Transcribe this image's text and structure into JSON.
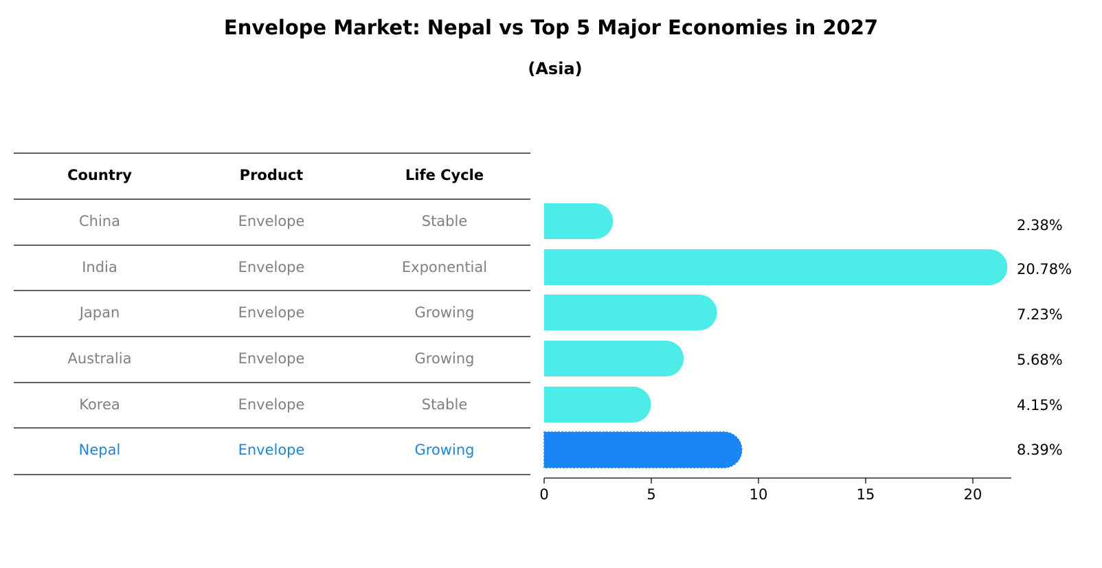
{
  "chart_data": {
    "type": "bar",
    "orientation": "horizontal",
    "title": "Envelope Market: Nepal vs Top 5 Major Economies in 2027",
    "subtitle": "(Asia)",
    "table": {
      "headers": [
        "Country",
        "Product",
        "Life Cycle"
      ],
      "rows": [
        [
          "China",
          "Envelope",
          "Stable"
        ],
        [
          "India",
          "Envelope",
          "Exponential"
        ],
        [
          "Japan",
          "Envelope",
          "Growing"
        ],
        [
          "Australia",
          "Envelope",
          "Growing"
        ],
        [
          "Korea",
          "Envelope",
          "Stable"
        ],
        [
          "Nepal",
          "Envelope",
          "Growing"
        ]
      ]
    },
    "categories": [
      "China",
      "India",
      "Japan",
      "Australia",
      "Korea",
      "Nepal"
    ],
    "values": [
      2.38,
      20.78,
      7.23,
      5.68,
      4.15,
      8.39
    ],
    "value_labels": [
      "2.38%",
      "20.78%",
      "7.23%",
      "5.68%",
      "4.15%",
      "8.39%"
    ],
    "highlight": "Nepal",
    "xlim": [
      0,
      21.8
    ],
    "xticks": [
      0,
      5,
      10,
      15,
      20
    ],
    "xtick_labels": [
      "0",
      "5",
      "10",
      "15",
      "20"
    ],
    "colors": {
      "bar": "#4cede9",
      "highlight_bar": "#1a85f5",
      "highlight_text": "#1f85d6",
      "muted_text": "#808080",
      "text": "#000000"
    }
  }
}
